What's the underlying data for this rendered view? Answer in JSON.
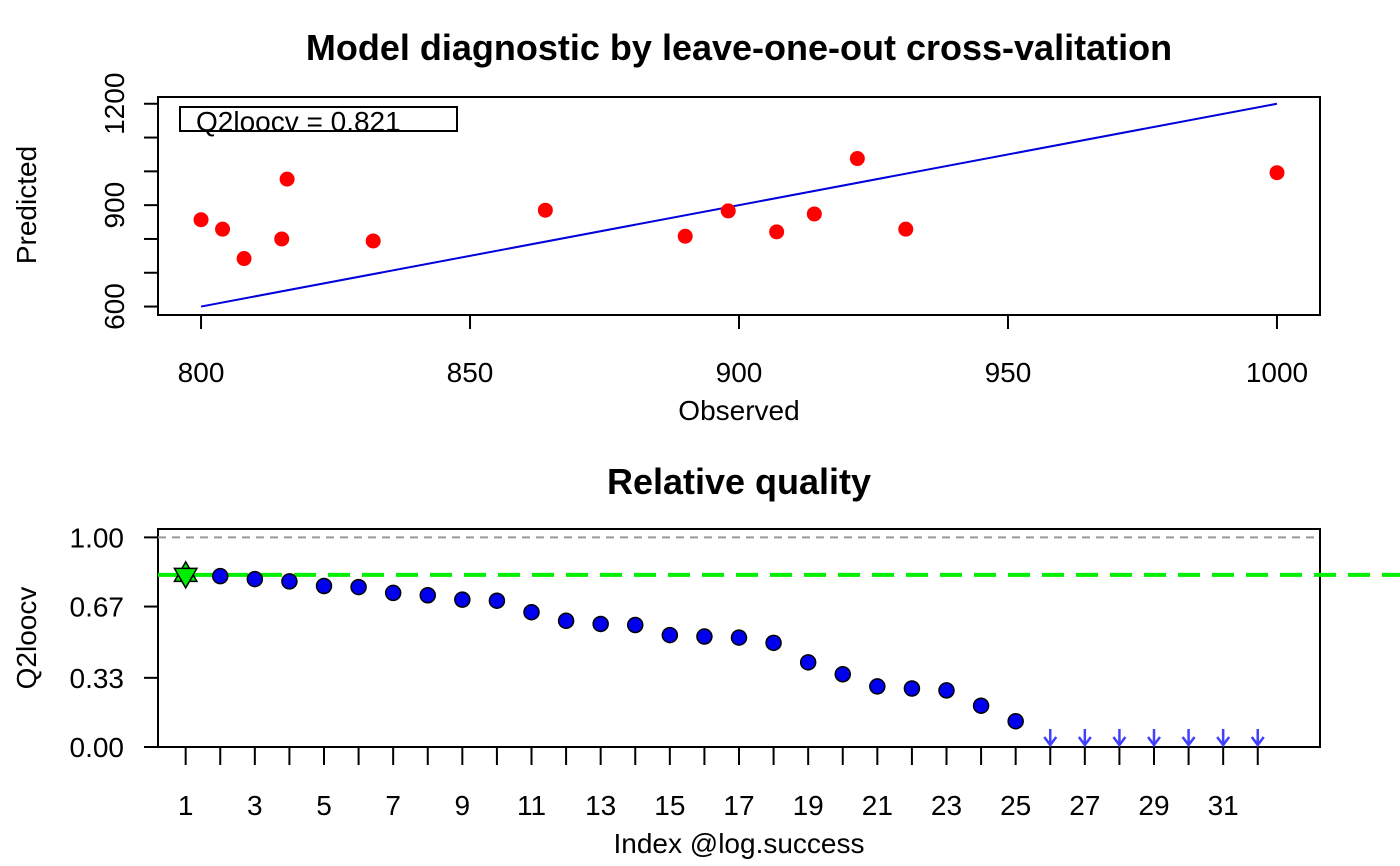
{
  "colors": {
    "points_top": "#ff0000",
    "fit_line": "#0000dd",
    "points_bottom": "#0000ee",
    "best_marker": "#00ee00",
    "best_line": "#00ee00",
    "ref_line": "#999999",
    "arrows": "#4040ff"
  },
  "chart_data": [
    {
      "type": "scatter",
      "title": "Model diagnostic by leave-one-out cross-valitation",
      "xlabel": "Observed",
      "ylabel": "Predicted",
      "xlim": [
        792,
        1008
      ],
      "ylim": [
        575,
        1220
      ],
      "x_ticks": [
        800,
        850,
        900,
        950,
        1000
      ],
      "y_ticks": [
        600,
        700,
        800,
        900,
        1000,
        1100,
        1200
      ],
      "y_tick_labels": [
        "600",
        "900",
        "1200"
      ],
      "legend": {
        "text": "Q2loocv = 0.821",
        "position": "top-left"
      },
      "identity_line": {
        "from": [
          800,
          600
        ],
        "to": [
          1000,
          1200
        ]
      },
      "points": [
        {
          "x": 800,
          "y": 857
        },
        {
          "x": 804,
          "y": 829
        },
        {
          "x": 808,
          "y": 742
        },
        {
          "x": 815,
          "y": 800
        },
        {
          "x": 816,
          "y": 977
        },
        {
          "x": 832,
          "y": 794
        },
        {
          "x": 864,
          "y": 885
        },
        {
          "x": 890,
          "y": 808
        },
        {
          "x": 898,
          "y": 883
        },
        {
          "x": 907,
          "y": 821
        },
        {
          "x": 914,
          "y": 874
        },
        {
          "x": 922,
          "y": 1038
        },
        {
          "x": 931,
          "y": 829
        },
        {
          "x": 1000,
          "y": 996
        }
      ]
    },
    {
      "type": "scatter",
      "title": "Relative quality",
      "xlabel": "Index @log.success",
      "ylabel": "Q2loocv",
      "xlim": [
        0.2,
        33.8
      ],
      "ylim": [
        0,
        1.04
      ],
      "y_ticks": [
        0,
        0.33,
        0.67,
        1.0
      ],
      "y_tick_labels": [
        "0.00",
        "0.33",
        "0.67",
        "1.00"
      ],
      "x_ticks": [
        1,
        2,
        3,
        4,
        5,
        6,
        7,
        8,
        9,
        10,
        11,
        12,
        13,
        14,
        15,
        16,
        17,
        18,
        19,
        20,
        21,
        22,
        23,
        24,
        25,
        26,
        27,
        28,
        29,
        30,
        31,
        32
      ],
      "x_tick_labels": [
        "1",
        "3",
        "5",
        "7",
        "9",
        "11",
        "13",
        "15",
        "17",
        "19",
        "21",
        "23",
        "25",
        "27",
        "29",
        "31"
      ],
      "reference_line": 1.0,
      "best_value_line": 0.821,
      "best_index": 1,
      "points": [
        {
          "x": 1,
          "y": 0.821
        },
        {
          "x": 2,
          "y": 0.815
        },
        {
          "x": 3,
          "y": 0.801
        },
        {
          "x": 4,
          "y": 0.79
        },
        {
          "x": 5,
          "y": 0.768
        },
        {
          "x": 6,
          "y": 0.763
        },
        {
          "x": 7,
          "y": 0.735
        },
        {
          "x": 8,
          "y": 0.724
        },
        {
          "x": 9,
          "y": 0.703
        },
        {
          "x": 10,
          "y": 0.698
        },
        {
          "x": 11,
          "y": 0.643
        },
        {
          "x": 12,
          "y": 0.602
        },
        {
          "x": 13,
          "y": 0.587
        },
        {
          "x": 14,
          "y": 0.582
        },
        {
          "x": 15,
          "y": 0.534
        },
        {
          "x": 16,
          "y": 0.527
        },
        {
          "x": 17,
          "y": 0.522
        },
        {
          "x": 18,
          "y": 0.497
        },
        {
          "x": 19,
          "y": 0.404
        },
        {
          "x": 20,
          "y": 0.347
        },
        {
          "x": 21,
          "y": 0.289
        },
        {
          "x": 22,
          "y": 0.279
        },
        {
          "x": 23,
          "y": 0.27
        },
        {
          "x": 24,
          "y": 0.197
        },
        {
          "x": 25,
          "y": 0.123
        }
      ],
      "below_range_indices": [
        26,
        27,
        28,
        29,
        30,
        31,
        32
      ]
    }
  ]
}
